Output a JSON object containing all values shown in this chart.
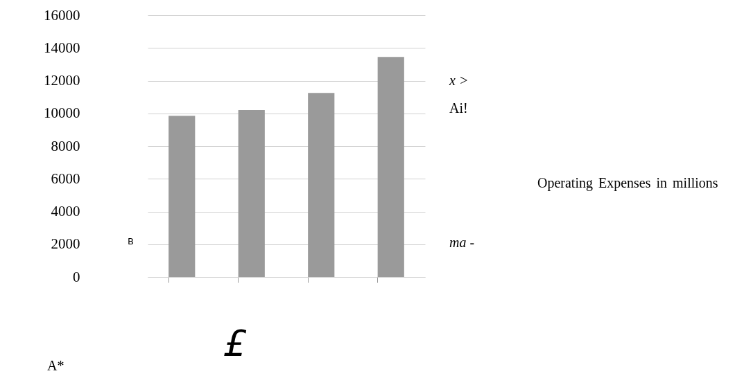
{
  "chart_data": {
    "type": "bar",
    "categories": [
      null,
      null,
      null,
      null
    ],
    "series": [
      {
        "color": "#9a9a9a",
        "values": [
          9850,
          10200,
          11250,
          13450
        ]
      }
    ],
    "ylim": [
      0,
      16000
    ],
    "yticks": [
      0,
      2000,
      4000,
      6000,
      8000,
      10000,
      12000,
      14000,
      16000
    ],
    "grid": "y",
    "annotations": [
      "x >",
      "Ai!",
      "ma -",
      "£",
      "A*",
      "B",
      "Operating Expenses in millions"
    ]
  }
}
